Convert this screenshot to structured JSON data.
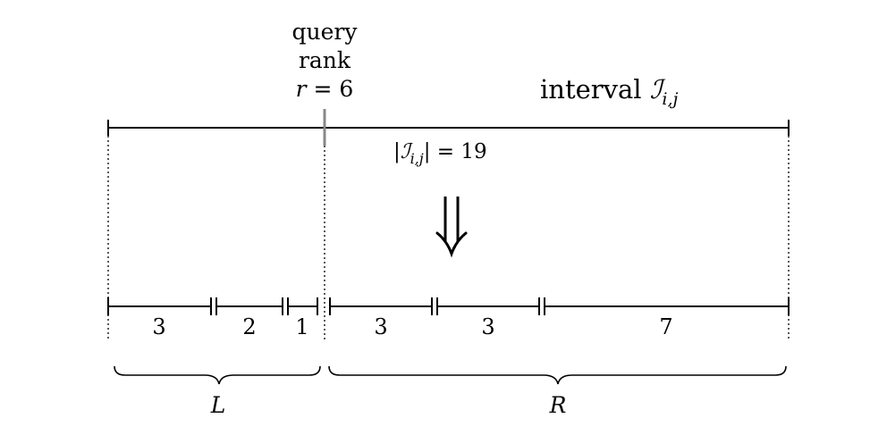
{
  "query": {
    "line1": "query",
    "line2": "rank",
    "var": "r",
    "eq": " = 6"
  },
  "interval": {
    "word": "interval ",
    "symbol": "ℐ",
    "subscript": "i,j",
    "size_open": "|ℐ",
    "size_close": "| = 19"
  },
  "segments": {
    "left": [
      "3",
      "2",
      "1"
    ],
    "right": [
      "3",
      "3",
      "7"
    ]
  },
  "groups": {
    "left": "L",
    "right": "R"
  },
  "colors": {
    "stroke": "#000000",
    "query_marker": "#888888"
  }
}
